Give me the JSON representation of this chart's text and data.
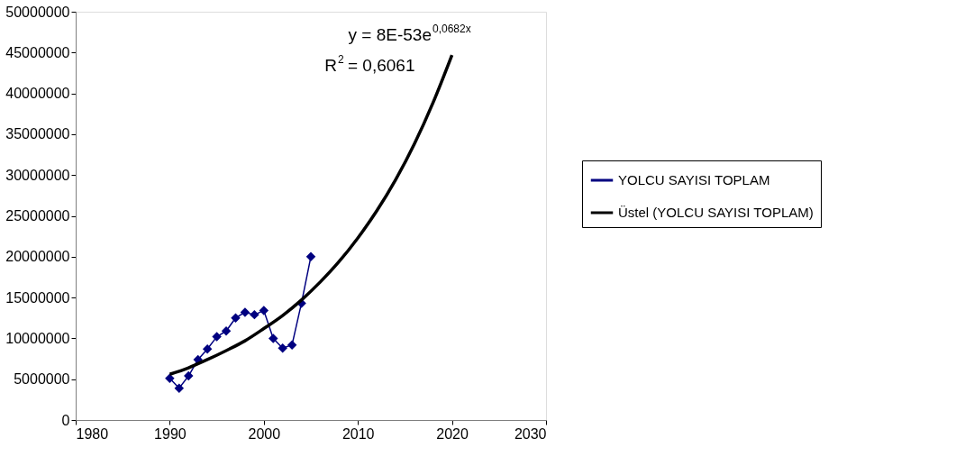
{
  "chart_data": {
    "type": "line",
    "x": [
      1990,
      1991,
      1992,
      1993,
      1994,
      1995,
      1996,
      1997,
      1998,
      1999,
      2000,
      2001,
      2002,
      2003,
      2004,
      2005
    ],
    "series": [
      {
        "name": "YOLCU SAYISI TOPLAM",
        "color": "#000080",
        "marker": "diamond",
        "values": [
          5100000,
          3900000,
          5400000,
          7400000,
          8700000,
          10200000,
          10900000,
          12500000,
          13200000,
          12900000,
          13400000,
          10000000,
          8800000,
          9200000,
          14300000,
          20000000
        ]
      },
      {
        "name": "Üstel (YOLCU SAYISI TOPLAM)",
        "color": "#000000",
        "type": "line",
        "marker": "none",
        "x": [
          1990,
          1992,
          1994,
          1996,
          1998,
          2000,
          2002,
          2004,
          2006,
          2008,
          2010,
          2012,
          2014,
          2016,
          2018,
          2020
        ],
        "values": [
          5600000,
          6400000,
          7400000,
          8500000,
          9700000,
          11200000,
          12800000,
          14700000,
          16900000,
          19400000,
          22300000,
          25600000,
          29400000,
          33800000,
          38900000,
          44700000
        ]
      }
    ],
    "xlim": [
      1980,
      2030
    ],
    "xticks": [
      1980,
      1990,
      2000,
      2010,
      2020,
      2030
    ],
    "ylim": [
      0,
      50000000
    ],
    "yticks": [
      0,
      5000000,
      10000000,
      15000000,
      20000000,
      25000000,
      30000000,
      35000000,
      40000000,
      45000000,
      50000000
    ],
    "annotations": [
      "y = 8E-53e$^{0,0682x}$",
      "R$^{2}$ = 0,6061"
    ],
    "grid": false,
    "legend": "right",
    "line_style": "solid"
  }
}
